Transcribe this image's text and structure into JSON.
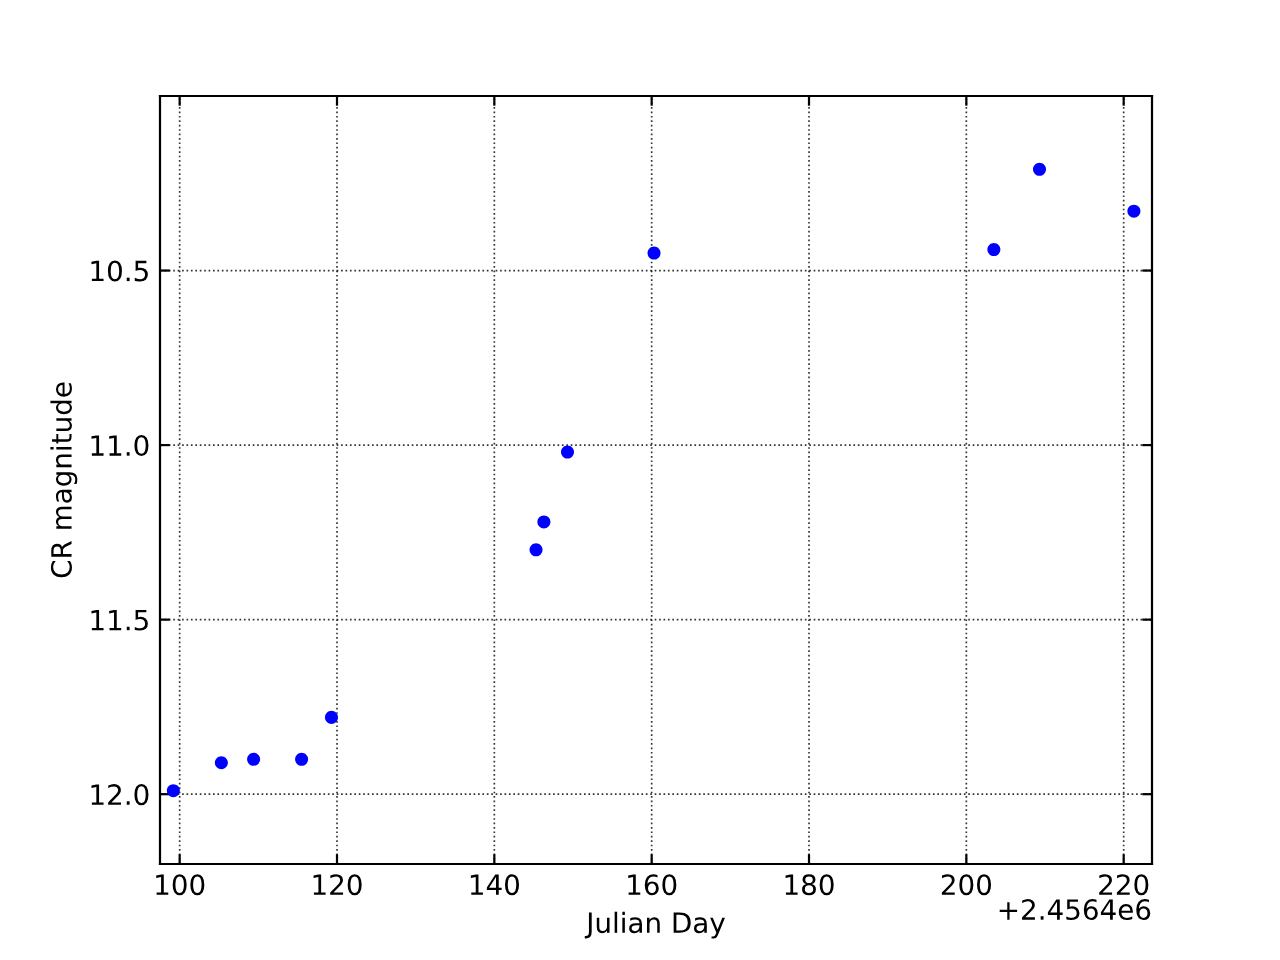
{
  "chart_data": {
    "type": "scatter",
    "xlabel": "Julian Day",
    "ylabel": "CR magnitude",
    "x": [
      99.2,
      105.3,
      109.4,
      115.5,
      119.3,
      145.3,
      146.3,
      149.3,
      160.3,
      203.5,
      209.3,
      221.3
    ],
    "series": [
      {
        "color": "#0000ff",
        "values": [
          11.99,
          11.91,
          11.9,
          11.9,
          11.78,
          11.3,
          11.22,
          11.02,
          10.45,
          10.44,
          10.21,
          10.33
        ]
      }
    ],
    "xlim": [
      97.5,
      223.6
    ],
    "ylim": [
      12.2,
      10.0
    ],
    "xticks": [
      100,
      120,
      140,
      160,
      180,
      200,
      220
    ],
    "yticks": [
      {
        "value": 10.5,
        "label": "10.5"
      },
      {
        "value": 11.0,
        "label": "11.0"
      },
      {
        "value": 11.5,
        "label": "11.5"
      },
      {
        "value": 12.0,
        "label": "12.0"
      }
    ],
    "annotations": [
      "+2.4564e6"
    ],
    "grid": true,
    "marker": "circle"
  }
}
